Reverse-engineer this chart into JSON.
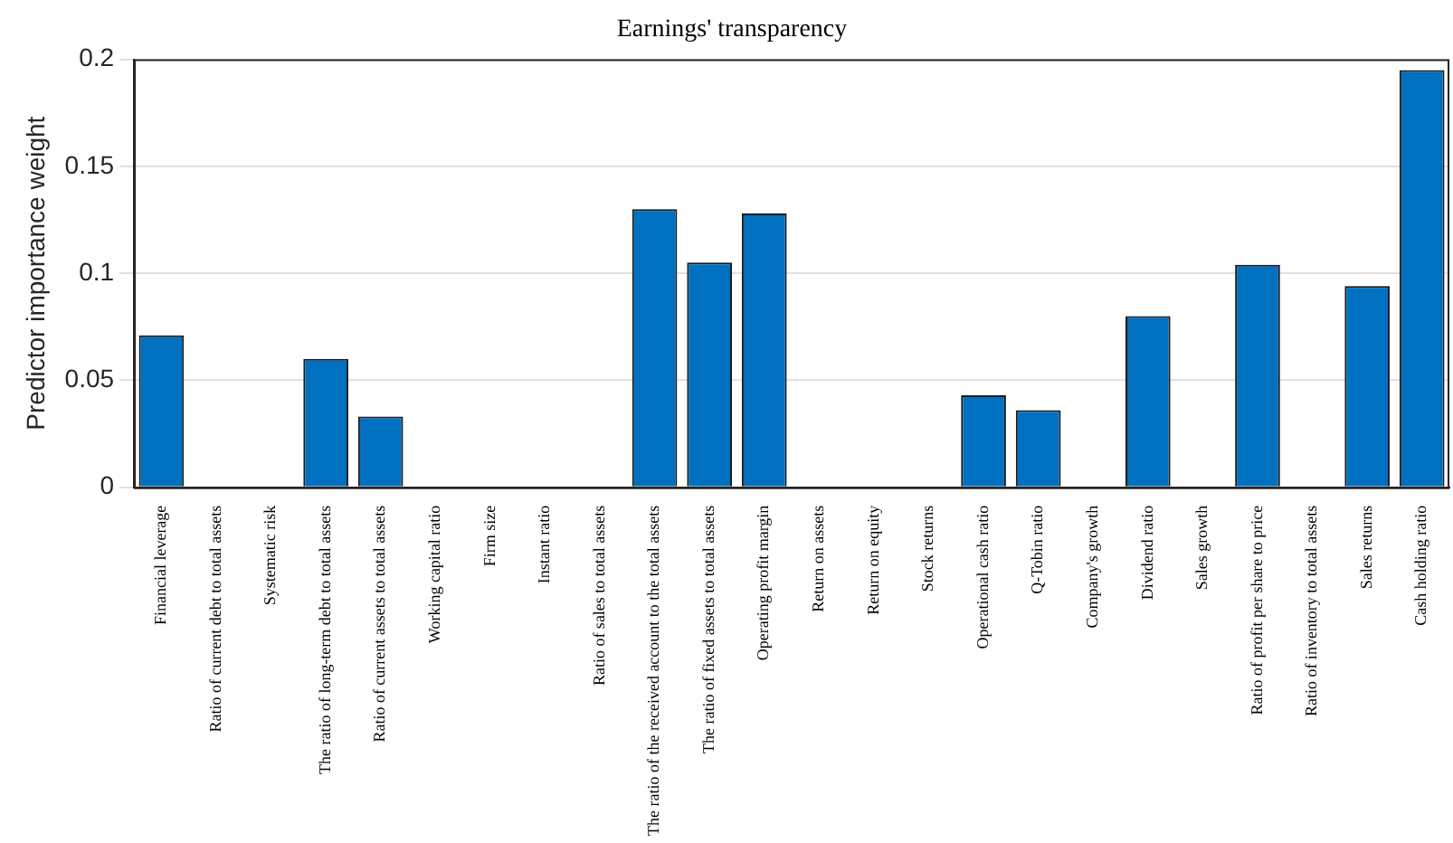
{
  "chart_data": {
    "type": "bar",
    "title": "Earnings' transparency",
    "ylabel": "Predictor importance weight",
    "categories": [
      "Financial leverage",
      "Ratio of current debt to total assets",
      "Systematic risk",
      "The ratio of long-term debt to total assets",
      "Ratio of current assets to total assets",
      "Working capital ratio",
      "Firm size",
      "Instant ratio",
      "Ratio of sales to total assets",
      "The ratio of the received account to the total assets",
      "The ratio of fixed assets to total assets",
      "Operating profit margin",
      "Return on assets",
      "Return on equity",
      "Stock returns",
      "Operational cash ratio",
      "Q-Tobin ratio",
      "Company's growth",
      "Dividend ratio",
      "Sales growth",
      "Ratio of profit per share to price",
      "Ratio of inventory to total assets",
      "Sales returns",
      "Cash holding ratio"
    ],
    "values": [
      0.071,
      0,
      0,
      0.06,
      0.033,
      0,
      0,
      0,
      0,
      0.13,
      0.105,
      0.128,
      0,
      0,
      0,
      0.043,
      0.036,
      0,
      0.08,
      0,
      0.104,
      0,
      0.094,
      0.195
    ],
    "color": "#0070c0",
    "ylim": [
      0,
      0.2
    ],
    "yticks": [
      0,
      0.05,
      0.1,
      0.15,
      0.2
    ],
    "grid": "y",
    "legend": false
  }
}
